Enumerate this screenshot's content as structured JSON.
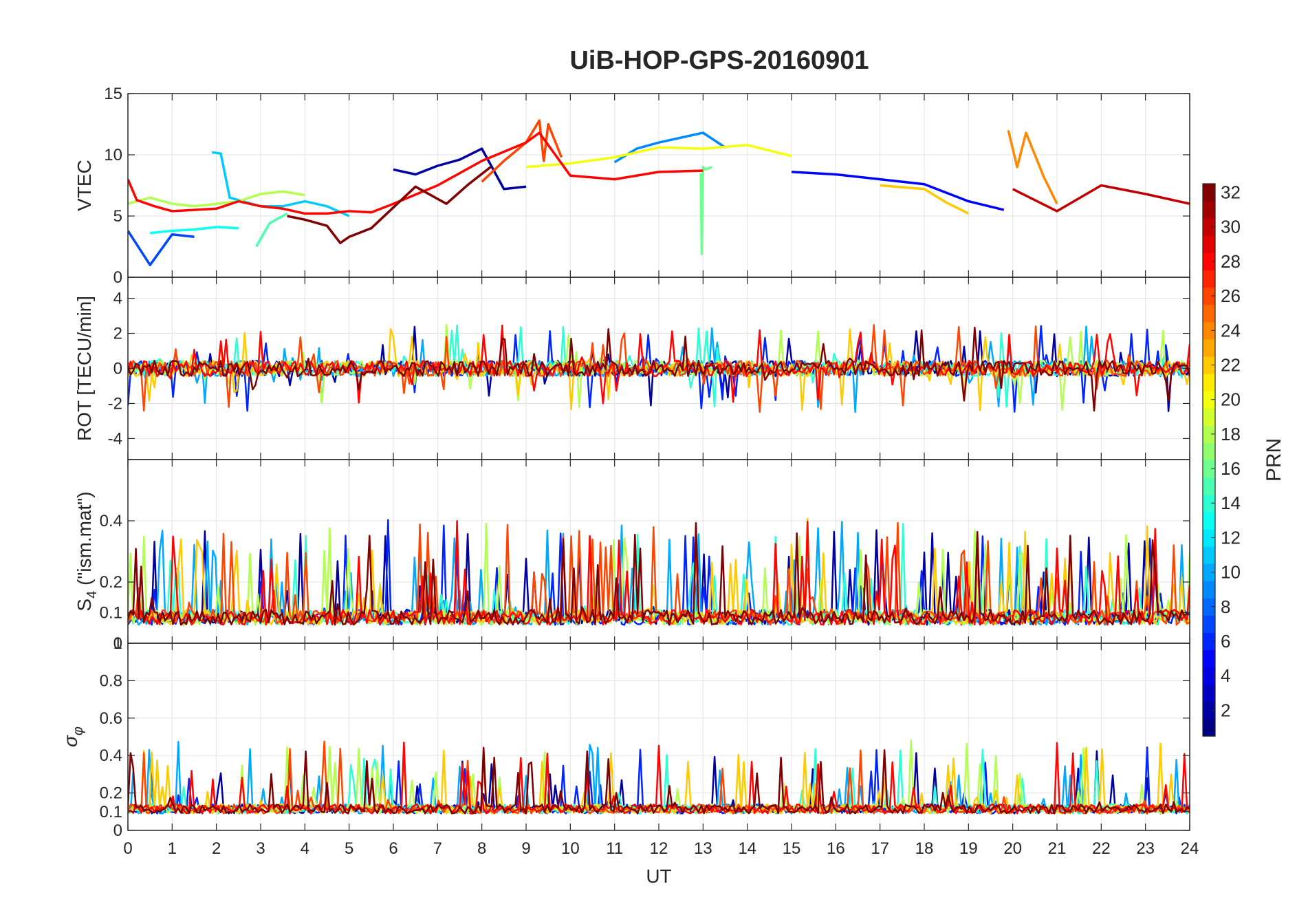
{
  "chart_data": {
    "type": "line",
    "title": "UiB-HOP-GPS-20160901",
    "xlabel": "UT",
    "xlim": [
      0,
      24
    ],
    "x_ticks": [
      "0",
      "1",
      "2",
      "3",
      "4",
      "5",
      "6",
      "7",
      "8",
      "9",
      "10",
      "11",
      "12",
      "13",
      "14",
      "15",
      "16",
      "17",
      "18",
      "19",
      "20",
      "21",
      "22",
      "23",
      "24"
    ],
    "grid": true,
    "colormap": "jet",
    "colorbar": {
      "label": "PRN",
      "range": [
        1,
        32
      ],
      "ticks": [
        "2",
        "4",
        "6",
        "8",
        "10",
        "12",
        "14",
        "16",
        "18",
        "20",
        "22",
        "24",
        "26",
        "28",
        "30",
        "32"
      ]
    },
    "panels": [
      {
        "ylabel": "VTEC",
        "ylim": [
          0,
          15
        ],
        "y_ticks": [
          "0",
          "5",
          "10",
          "15"
        ],
        "series": [
          {
            "prn": 2,
            "x": [
              6,
              6.5,
              7,
              7.5,
              8,
              8.5,
              9
            ],
            "y": [
              8.8,
              8.4,
              9.1,
              9.6,
              10.5,
              7.2,
              7.4
            ]
          },
          {
            "prn": 5,
            "x": [
              15,
              16,
              17,
              18,
              19,
              19.8
            ],
            "y": [
              8.6,
              8.4,
              8.0,
              7.6,
              6.2,
              5.5
            ]
          },
          {
            "prn": 7,
            "x": [
              0,
              0.5,
              1,
              1.5
            ],
            "y": [
              3.8,
              1.0,
              3.5,
              3.3
            ]
          },
          {
            "prn": 9,
            "x": [
              11,
              11.5,
              12,
              12.5,
              13,
              13.5
            ],
            "y": [
              9.4,
              10.5,
              11,
              11.4,
              11.8,
              10.6
            ]
          },
          {
            "prn": 11,
            "x": [
              1.9,
              2.1,
              2.3,
              3,
              3.5,
              4,
              4.5,
              5
            ],
            "y": [
              10.2,
              10.1,
              6.5,
              5.8,
              5.8,
              6.2,
              5.8,
              5.0
            ]
          },
          {
            "prn": 13,
            "x": [
              0.5,
              1,
              1.5,
              2,
              2.5
            ],
            "y": [
              3.6,
              3.8,
              3.9,
              4.1,
              4.0
            ]
          },
          {
            "prn": 15,
            "x": [
              2.9,
              3.2,
              3.6
            ],
            "y": [
              2.5,
              4.4,
              5.2
            ]
          },
          {
            "prn": 16,
            "x": [
              12.95,
              12.97,
              13.0,
              13.05,
              13.2
            ],
            "y": [
              8.5,
              1.9,
              9.0,
              8.8,
              9.0
            ]
          },
          {
            "prn": 18,
            "x": [
              0,
              0.5,
              1,
              1.5,
              2,
              2.5,
              3,
              3.5,
              4
            ],
            "y": [
              6.0,
              6.5,
              6.0,
              5.8,
              6.0,
              6.2,
              6.8,
              7.0,
              6.7
            ]
          },
          {
            "prn": 20,
            "x": [
              9,
              10,
              11,
              12,
              13,
              14,
              15
            ],
            "y": [
              9.0,
              9.3,
              9.8,
              10.6,
              10.5,
              10.8,
              9.9
            ]
          },
          {
            "prn": 22,
            "x": [
              17,
              18,
              18.5,
              19
            ],
            "y": [
              7.5,
              7.2,
              6.1,
              5.2
            ]
          },
          {
            "prn": 24,
            "x": [
              19.9,
              20.1,
              20.3,
              20.7,
              21
            ],
            "y": [
              12.0,
              9.0,
              11.8,
              8.2,
              6.0
            ]
          },
          {
            "prn": 26,
            "x": [
              8,
              8.5,
              9,
              9.3,
              9.4,
              9.5,
              9.8
            ],
            "y": [
              7.8,
              9.5,
              11,
              12.8,
              9.5,
              12.5,
              9.8
            ]
          },
          {
            "prn": 28,
            "x": [
              0,
              0.2,
              0.6,
              1,
              1.5,
              2,
              2.5,
              3,
              3.5,
              4,
              4.5,
              5,
              5.5,
              6,
              7,
              8,
              9,
              9.3,
              10,
              11,
              12,
              13
            ],
            "y": [
              8.0,
              6.3,
              5.8,
              5.4,
              5.5,
              5.6,
              6.2,
              5.8,
              5.6,
              5.2,
              5.2,
              5.4,
              5.3,
              6.0,
              7.5,
              9.5,
              11.0,
              11.8,
              8.3,
              8.0,
              8.6,
              8.7
            ]
          },
          {
            "prn": 30,
            "x": [
              20,
              21,
              22,
              23,
              24
            ],
            "y": [
              7.2,
              5.4,
              7.5,
              6.8,
              6.0
            ]
          },
          {
            "prn": 32,
            "x": [
              3.6,
              4,
              4.5,
              4.8,
              5,
              5.5,
              6.5,
              7.2,
              7.7,
              8.2
            ],
            "y": [
              5.0,
              4.7,
              4.2,
              2.8,
              3.3,
              4.0,
              7.4,
              6.0,
              7.6,
              9.0
            ]
          }
        ]
      },
      {
        "ylabel": "ROT [TECU/min]",
        "ylim": [
          -5.2,
          5.2
        ],
        "y_ticks": [
          "-4",
          "-2",
          "0",
          "2",
          "4"
        ]
      },
      {
        "ylabel": "S4 (\"ism.mat\")",
        "ylabel_main": "S",
        "ylabel_sub": "4",
        "ylabel_tail": " (\"ism.mat\")",
        "ylim": [
          0,
          0.6
        ],
        "y_ticks": [
          "0",
          "0.1",
          "0.2",
          "0.4"
        ]
      },
      {
        "ylabel": "σφ",
        "ylabel_main": "σ",
        "ylabel_sub": "φ",
        "ylim": [
          0,
          1.0
        ],
        "y_ticks": [
          "0",
          "0.1",
          "0.2",
          "0.4",
          "0.6",
          "0.8"
        ],
        "top_tick": "1"
      }
    ]
  }
}
